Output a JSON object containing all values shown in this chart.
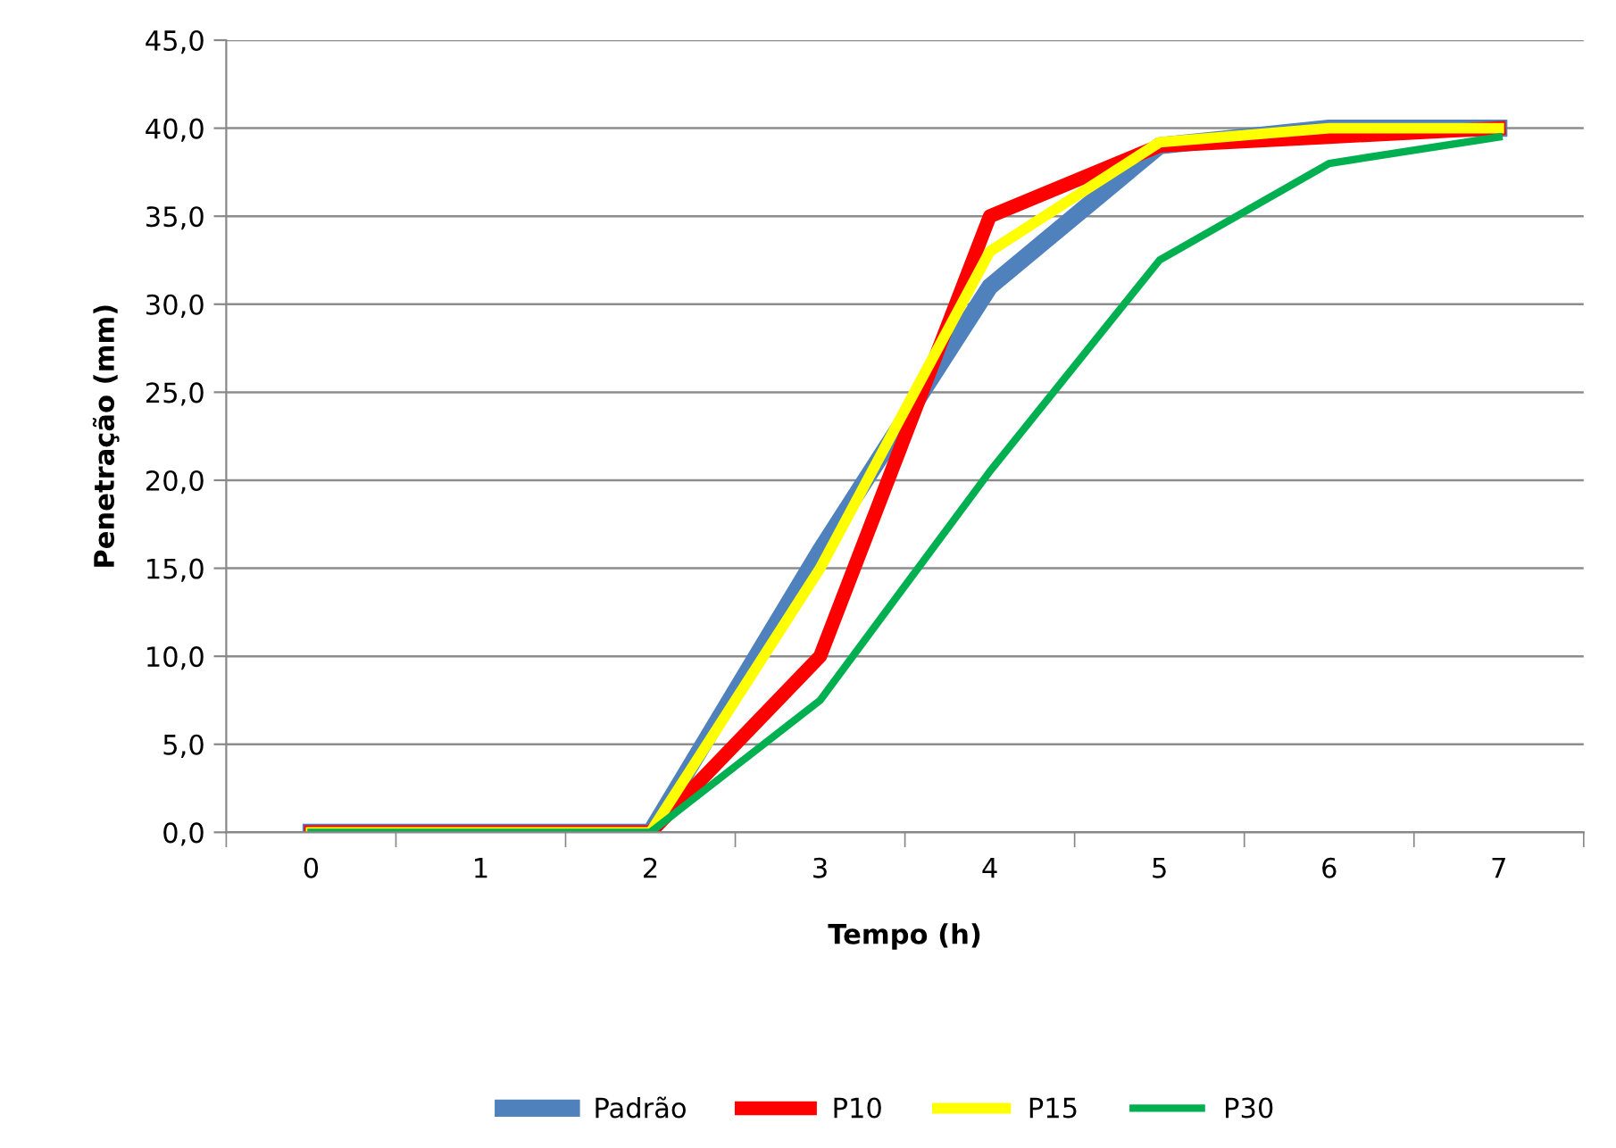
{
  "chart_data": {
    "type": "line",
    "xlabel": "Tempo (h)",
    "ylabel": "Penetração (mm)",
    "categories": [
      "0",
      "1",
      "2",
      "3",
      "4",
      "5",
      "6",
      "7"
    ],
    "series": [
      {
        "name": "Padrão",
        "color": "#4f81bd",
        "values": [
          0,
          0,
          0,
          16,
          31,
          39,
          40,
          40
        ]
      },
      {
        "name": "P10",
        "color": "#ff0000",
        "values": [
          0,
          0,
          0,
          10,
          35,
          39,
          39.5,
          40
        ]
      },
      {
        "name": "P15",
        "color": "#ffff00",
        "values": [
          0,
          0,
          0,
          15,
          33,
          39.2,
          40,
          40
        ]
      },
      {
        "name": "P30",
        "color": "#00b050",
        "values": [
          0,
          0,
          0,
          7.5,
          20.5,
          32.5,
          38,
          39.5
        ]
      }
    ],
    "ylim": [
      0,
      45
    ],
    "yticks": [
      {
        "value": 0,
        "label": "0,0"
      },
      {
        "value": 5,
        "label": "5,0"
      },
      {
        "value": 10,
        "label": "10,0"
      },
      {
        "value": 15,
        "label": "15,0"
      },
      {
        "value": 20,
        "label": "20,0"
      },
      {
        "value": 25,
        "label": "25,0"
      },
      {
        "value": 30,
        "label": "30,0"
      },
      {
        "value": 35,
        "label": "35,0"
      },
      {
        "value": 40,
        "label": "40,0"
      },
      {
        "value": 45,
        "label": "45,0"
      }
    ],
    "grid": "y",
    "legend": "bottom",
    "marker": "none",
    "line_style": "solid"
  }
}
